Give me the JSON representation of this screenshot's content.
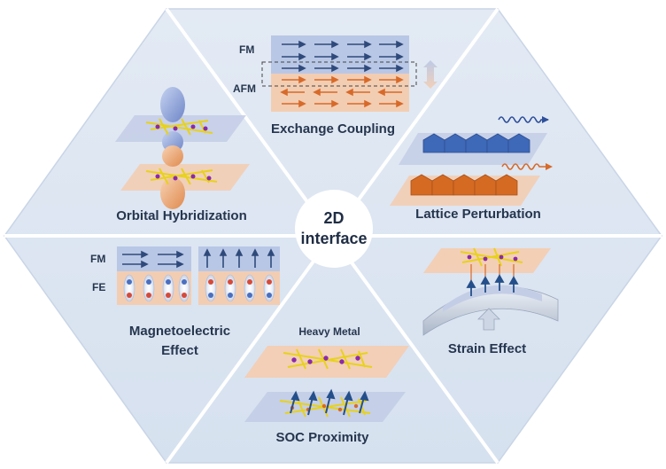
{
  "center": {
    "line1": "2D",
    "line2": "interface"
  },
  "sections": {
    "exchange_coupling": {
      "title": "Exchange Coupling",
      "fm_label": "FM",
      "afm_label": "AFM"
    },
    "lattice_perturbation": {
      "title": "Lattice Perturbation"
    },
    "strain_effect": {
      "title": "Strain Effect"
    },
    "soc_proximity": {
      "title": "SOC Proximity",
      "heavy_metal_label": "Heavy Metal"
    },
    "magnetoelectric": {
      "title_line1": "Magnetoelectric",
      "title_line2": "Effect",
      "fm_label": "FM",
      "fe_label": "FE"
    },
    "orbital_hybridization": {
      "title": "Orbital Hybridization"
    }
  },
  "colors": {
    "hexagon_fill": "#dce6f2",
    "divider": "#ffffff",
    "blue_layer": "#b9c7e6",
    "orange_layer": "#f3cdb2",
    "arrow_blue": "#2f4a7a",
    "arrow_orange": "#d76a2a",
    "crystal_yellow": "#e8d21a",
    "crystal_purple": "#8a2aa8",
    "text": "#26364f"
  }
}
